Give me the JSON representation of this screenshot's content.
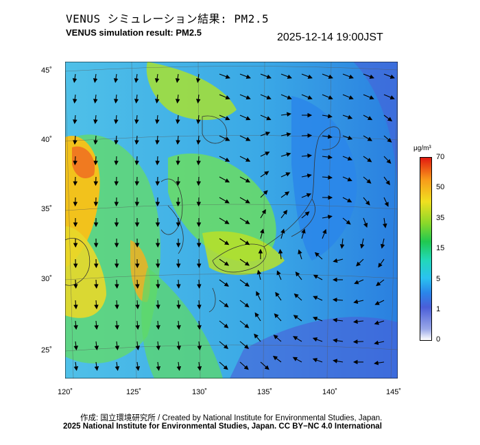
{
  "title_ja": "VENUS シミュレーション結果: PM2.5",
  "title_en": "VENUS simulation result: PM2.5",
  "datetime": "2025-12-14 19:00JST",
  "lat_ticks": [
    "45˚",
    "40˚",
    "35˚",
    "30˚",
    "25˚"
  ],
  "lon_ticks": [
    "120˚",
    "125˚",
    "130˚",
    "135˚",
    "140˚",
    "145˚"
  ],
  "colorbar": {
    "unit": "μg/m³",
    "labels": [
      "70",
      "50",
      "35",
      "15",
      "5",
      "1",
      "0"
    ]
  },
  "footer_credit": "作成: 国立環境研究所 / Created by National Institute for Environmental Studies, Japan.",
  "footer_license": "2025 National Institute for Environmental Studies, Japan. CC BY−NC 4.0 International"
}
